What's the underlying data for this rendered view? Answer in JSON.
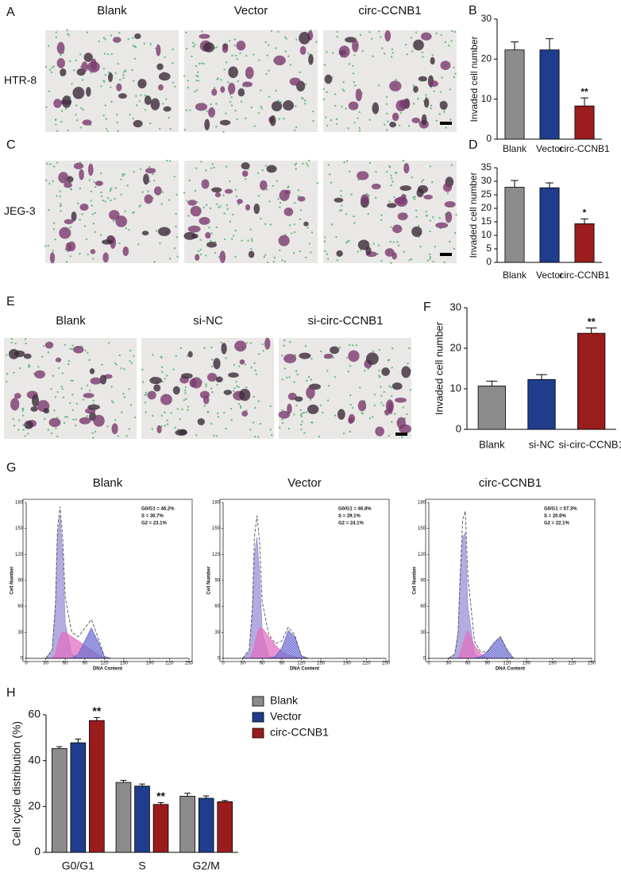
{
  "panel_labels": [
    "A",
    "B",
    "C",
    "D",
    "E",
    "F",
    "G",
    "H"
  ],
  "image_panels": [
    {
      "columns": [
        "Blank",
        "Vector",
        "circ-CCNB1"
      ],
      "rows": [
        "HTR-8",
        "JEG-3"
      ]
    },
    {
      "columns": [
        "Blank",
        "si-NC",
        "si-circ-CCNB1"
      ]
    }
  ],
  "chart_data": [
    {
      "type": "bar",
      "ylabel": "Invaded cell number",
      "categories": [
        "Blank",
        "Vector",
        "circ-CCNB1"
      ],
      "values": [
        22.3,
        22.3,
        8.3
      ],
      "errors": [
        2.0,
        2.8,
        2.0
      ],
      "significance": [
        null,
        null,
        "**"
      ],
      "colors": [
        "#8c8c8c",
        "#1f3d8c",
        "#9b1c1c"
      ],
      "ylim": [
        0,
        30
      ],
      "yticks": [
        0,
        10,
        20,
        30
      ]
    },
    {
      "type": "bar",
      "ylabel": "Invaded cell number",
      "categories": [
        "Blank",
        "Vector",
        "circ-CCNB1"
      ],
      "values": [
        27.8,
        27.6,
        14.3
      ],
      "errors": [
        2.5,
        1.8,
        1.8
      ],
      "significance": [
        null,
        null,
        "*"
      ],
      "colors": [
        "#8c8c8c",
        "#1f3d8c",
        "#9b1c1c"
      ],
      "ylim": [
        0,
        35
      ],
      "yticks": [
        0,
        5,
        10,
        15,
        20,
        25,
        30,
        35
      ]
    },
    {
      "type": "bar",
      "ylabel": "Invaded cell number",
      "categories": [
        "Blank",
        "si-NC",
        "si-circ-CCNB1"
      ],
      "values": [
        10.7,
        12.3,
        23.7
      ],
      "errors": [
        1.2,
        1.2,
        1.3
      ],
      "significance": [
        null,
        null,
        "**"
      ],
      "colors": [
        "#8c8c8c",
        "#1f3d8c",
        "#9b1c1c"
      ],
      "ylim": [
        0,
        30
      ],
      "yticks": [
        0,
        10,
        20,
        30
      ]
    },
    {
      "type": "area",
      "title": "Blank",
      "xlabel": "DNA Content",
      "ylabel": "Cell Number",
      "annotations": [
        "G0/G1 = 46.2%",
        "S = 30.7%",
        "G2 = 23.1%"
      ],
      "x": [
        30,
        40,
        45,
        48,
        52,
        56,
        60,
        70,
        80,
        90,
        100,
        110,
        120,
        130
      ],
      "series": [
        {
          "color": "#9b8fd6",
          "fill": true,
          "values": [
            0,
            10,
            60,
            140,
            165,
            120,
            40,
            5,
            0,
            0,
            0,
            0,
            0,
            0
          ]
        },
        {
          "color": "#e070c0",
          "fill": true,
          "values": [
            0,
            0,
            5,
            15,
            25,
            30,
            30,
            25,
            20,
            15,
            10,
            5,
            0,
            0
          ]
        },
        {
          "color": "#6a6ad8",
          "fill": true,
          "values": [
            0,
            0,
            0,
            0,
            0,
            0,
            0,
            0,
            5,
            20,
            35,
            20,
            2,
            0
          ]
        },
        {
          "color": "#555555",
          "fill": false,
          "values": [
            0,
            10,
            65,
            150,
            175,
            140,
            70,
            30,
            25,
            35,
            45,
            25,
            2,
            0
          ]
        }
      ],
      "xlim": [
        0,
        250
      ],
      "xticks": [
        0,
        30,
        60,
        90,
        120,
        150,
        190,
        220,
        250
      ],
      "ylim": [
        0,
        180
      ],
      "yticks": [
        0,
        30,
        60,
        90,
        120,
        150,
        180
      ]
    },
    {
      "type": "area",
      "title": "Vector",
      "xlabel": "DNA Content",
      "ylabel": "Cell Number",
      "annotations": [
        "G0/G1 = 46.8%",
        "S = 29.1%",
        "G2 = 24.1%"
      ],
      "x": [
        30,
        40,
        45,
        48,
        52,
        56,
        60,
        70,
        80,
        90,
        100,
        110,
        120,
        130
      ],
      "series": [
        {
          "color": "#9b8fd6",
          "fill": true,
          "values": [
            0,
            8,
            50,
            120,
            140,
            100,
            30,
            3,
            0,
            0,
            0,
            0,
            0,
            0
          ]
        },
        {
          "color": "#e070c0",
          "fill": true,
          "values": [
            0,
            0,
            5,
            15,
            28,
            35,
            35,
            25,
            15,
            8,
            4,
            2,
            0,
            0
          ]
        },
        {
          "color": "#6a6ad8",
          "fill": true,
          "values": [
            0,
            0,
            0,
            0,
            0,
            0,
            0,
            0,
            2,
            12,
            32,
            25,
            3,
            0
          ]
        },
        {
          "color": "#555555",
          "fill": false,
          "values": [
            0,
            10,
            60,
            140,
            165,
            135,
            65,
            28,
            17,
            20,
            36,
            27,
            3,
            0
          ]
        }
      ],
      "xlim": [
        0,
        250
      ],
      "xticks": [
        0,
        30,
        60,
        90,
        120,
        150,
        190,
        220,
        250
      ],
      "ylim": [
        0,
        180
      ],
      "yticks": [
        0,
        30,
        60,
        90,
        120,
        150,
        180
      ]
    },
    {
      "type": "area",
      "title": "circ-CCNB1",
      "xlabel": "DNA Content",
      "ylabel": "Cell Number",
      "annotations": [
        "G0/G1 = 57.3%",
        "S = 20.6%",
        "G2 = 22.1%"
      ],
      "x": [
        30,
        40,
        45,
        48,
        52,
        56,
        60,
        70,
        80,
        90,
        100,
        110,
        120,
        130
      ],
      "series": [
        {
          "color": "#9b8fd6",
          "fill": true,
          "values": [
            0,
            5,
            30,
            90,
            140,
            145,
            60,
            5,
            0,
            0,
            0,
            0,
            0,
            0
          ]
        },
        {
          "color": "#e070c0",
          "fill": true,
          "values": [
            0,
            0,
            0,
            5,
            15,
            25,
            32,
            15,
            5,
            0,
            0,
            0,
            0,
            0
          ]
        },
        {
          "color": "#6a6ad8",
          "fill": true,
          "values": [
            0,
            0,
            0,
            0,
            0,
            0,
            0,
            0,
            2,
            8,
            18,
            25,
            10,
            0
          ]
        },
        {
          "color": "#555555",
          "fill": false,
          "values": [
            0,
            5,
            30,
            95,
            160,
            170,
            95,
            20,
            7,
            8,
            18,
            25,
            10,
            0
          ]
        }
      ],
      "xlim": [
        0,
        250
      ],
      "xticks": [
        0,
        30,
        60,
        90,
        120,
        150,
        190,
        220,
        250
      ],
      "ylim": [
        0,
        180
      ],
      "yticks": [
        0,
        30,
        60,
        90,
        120,
        150,
        180
      ]
    },
    {
      "type": "bar",
      "ylabel": "Cell cycle distribution (%)",
      "categories": [
        "G0/G1",
        "S",
        "G2/M"
      ],
      "series": [
        {
          "name": "Blank",
          "color": "#8c8c8c",
          "values": [
            45.3,
            30.5,
            24.5
          ],
          "errors": [
            0.8,
            0.9,
            1.3
          ],
          "significance": [
            null,
            null,
            null
          ]
        },
        {
          "name": "Vector",
          "color": "#1f3d8c",
          "values": [
            47.8,
            28.9,
            23.6
          ],
          "errors": [
            1.6,
            0.9,
            1.0
          ],
          "significance": [
            null,
            null,
            null
          ]
        },
        {
          "name": "circ-CCNB1",
          "color": "#9b1c1c",
          "values": [
            57.5,
            20.9,
            22.1
          ],
          "errors": [
            1.3,
            0.8,
            0.5
          ],
          "significance": [
            "**",
            "**",
            null
          ]
        }
      ],
      "ylim": [
        0,
        60
      ],
      "yticks": [
        0,
        20,
        40,
        60
      ]
    }
  ]
}
